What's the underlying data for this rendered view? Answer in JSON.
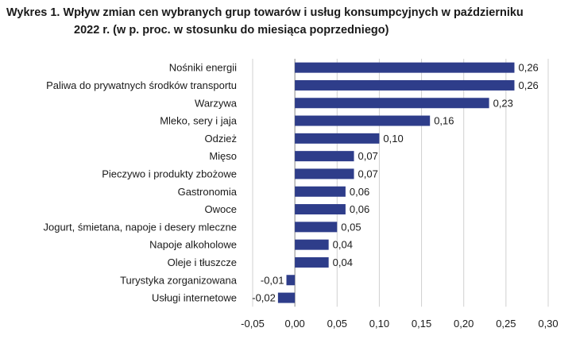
{
  "chart_data": {
    "type": "bar",
    "orientation": "horizontal",
    "title_lines": [
      "Wykres 1. Wpływ zmian cen wybranych grup towarów i usług konsumpcyjnych w październiku",
      "2022 r. (w p. proc. w stosunku do miesiąca poprzedniego)"
    ],
    "categories": [
      "Nośniki energii",
      "Paliwa do prywatnych środków transportu",
      "Warzywa",
      "Mleko, sery i jaja",
      "Odzież",
      "Mięso",
      "Pieczywo i produkty zbożowe",
      "Gastronomia",
      "Owoce",
      "Jogurt, śmietana, napoje i desery mleczne",
      "Napoje alkoholowe",
      "Oleje i tłuszcze",
      "Turystyka zorganizowana",
      "Usługi  internetowe"
    ],
    "values": [
      0.26,
      0.26,
      0.23,
      0.16,
      0.1,
      0.07,
      0.07,
      0.06,
      0.06,
      0.05,
      0.04,
      0.04,
      -0.01,
      -0.02
    ],
    "value_labels": [
      "0,26",
      "0,26",
      "0,23",
      "0,16",
      "0,10",
      "0,07",
      "0,07",
      "0,06",
      "0,06",
      "0,05",
      "0,04",
      "0,04",
      "-0,01",
      "-0,02"
    ],
    "x_ticks": [
      -0.05,
      0.0,
      0.05,
      0.1,
      0.15,
      0.2,
      0.25,
      0.3
    ],
    "x_tick_labels": [
      "-0,05",
      "0,00",
      "0,05",
      "0,10",
      "0,15",
      "0,20",
      "0,25",
      "0,30"
    ],
    "xlim": [
      -0.05,
      0.3
    ],
    "grid": "vertical",
    "legend": "none",
    "colors": {
      "bar": "#2e3d8a",
      "grid": "#d0d0d0",
      "axis": "#888888",
      "text": "#1a1a1a"
    }
  }
}
